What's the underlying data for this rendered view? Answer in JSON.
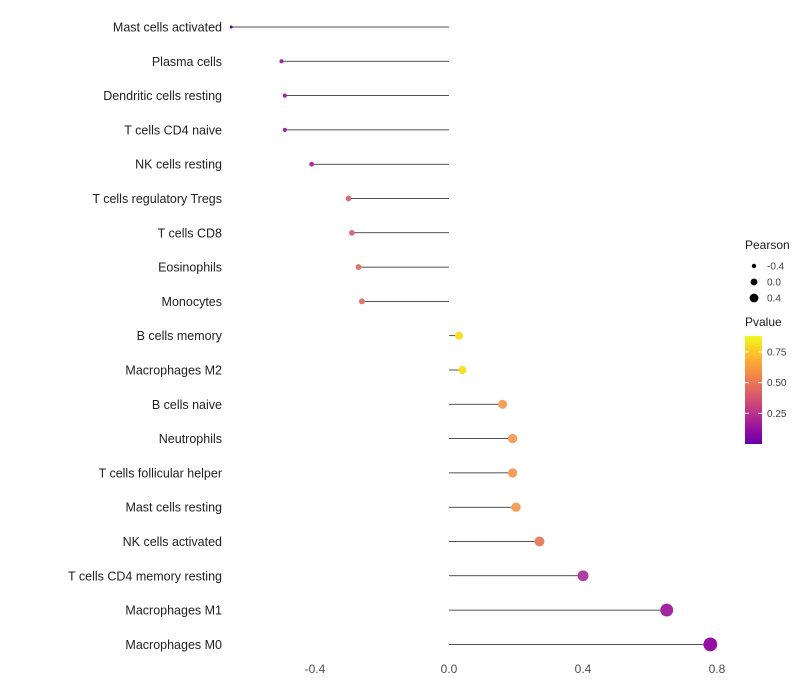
{
  "chart_data": {
    "type": "lollipop",
    "title": "",
    "xlabel": "",
    "ylabel": "",
    "grid": false,
    "xlim": [
      -0.72,
      0.88
    ],
    "x_ticks": [
      -0.4,
      0.0,
      0.4,
      0.8
    ],
    "x_tick_labels": [
      "-0.4",
      "0.0",
      "0.4",
      "0.8"
    ],
    "categories": [
      "Mast cells activated",
      "Plasma cells",
      "Dendritic cells resting",
      "T cells CD4 naive",
      "NK cells resting",
      "T cells regulatory Tregs",
      "T cells CD8",
      "Eosinophils",
      "Monocytes",
      "B cells memory",
      "Macrophages M2",
      "B cells naive",
      "Neutrophils",
      "T cells follicular helper",
      "Mast cells resting",
      "NK cells activated",
      "T cells CD4 memory resting",
      "Macrophages M1",
      "Macrophages M0"
    ],
    "series": [
      {
        "name": "Pearson",
        "values": [
          -0.65,
          -0.5,
          -0.49,
          -0.49,
          -0.41,
          -0.3,
          -0.29,
          -0.27,
          -0.26,
          0.03,
          0.04,
          0.16,
          0.19,
          0.19,
          0.2,
          0.27,
          0.4,
          0.65,
          0.78
        ]
      },
      {
        "name": "Pvalue",
        "values": [
          0.03,
          0.2,
          0.2,
          0.2,
          0.24,
          0.48,
          0.48,
          0.52,
          0.52,
          0.85,
          0.83,
          0.65,
          0.65,
          0.65,
          0.65,
          0.55,
          0.3,
          0.18,
          0.12
        ]
      }
    ],
    "point_colors": [
      "#55039f",
      "#a026a0",
      "#a026a0",
      "#a026a0",
      "#ab2f96",
      "#d86b75",
      "#d86b75",
      "#de7668",
      "#de7668",
      "#f6e126",
      "#f5e128",
      "#f5a15d",
      "#f5a15d",
      "#f4a05c",
      "#f4a05c",
      "#e67f63",
      "#b13fa2",
      "#a228a0",
      "#9410a2"
    ],
    "stem_color": "#1a1a1a",
    "background_color": "#ffffff",
    "legend": {
      "position": "right",
      "size_legend": {
        "title": "Pearson",
        "entries": [
          {
            "label": "-0.4"
          },
          {
            "label": "0.0"
          },
          {
            "label": "0.4"
          }
        ],
        "dot_color": "#000000"
      },
      "color_legend": {
        "title": "Pvalue",
        "tick_labels": [
          "0.75",
          "0.50",
          "0.25"
        ],
        "tick_values": [
          0.75,
          0.5,
          0.25
        ],
        "range": [
          0.0,
          0.88
        ],
        "gradient_top_to_bottom": [
          "#f0f921",
          "#fcce25",
          "#fca636",
          "#f2844b",
          "#e16462",
          "#cc4778",
          "#b12a90",
          "#8f0da4",
          "#6a00a8"
        ]
      }
    }
  }
}
